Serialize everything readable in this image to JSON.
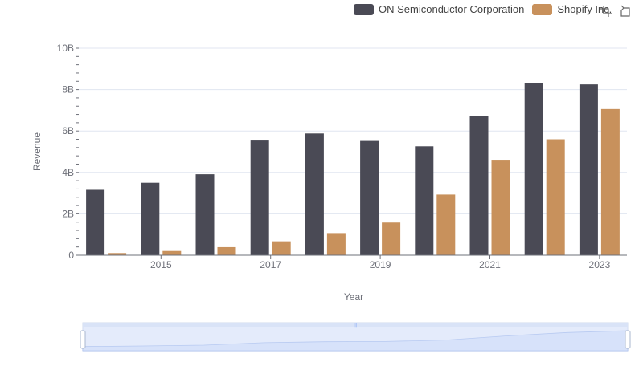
{
  "chart_data": {
    "type": "bar",
    "title": "",
    "xlabel": "Year",
    "ylabel": "Revenue",
    "categories": [
      "2014",
      "2015",
      "2016",
      "2017",
      "2018",
      "2019",
      "2020",
      "2021",
      "2022",
      "2023"
    ],
    "x_tick_labels": [
      "2015",
      "2017",
      "2019",
      "2021",
      "2023"
    ],
    "y_tick_labels": [
      "0",
      "2B",
      "4B",
      "6B",
      "8B",
      "10B"
    ],
    "ylim": [
      0,
      10000000000
    ],
    "grid": true,
    "legend_position": "top-right",
    "series": [
      {
        "name": "ON Semiconductor Corporation",
        "color": "#4a4a55",
        "values": [
          3160000000,
          3500000000,
          3910000000,
          5540000000,
          5880000000,
          5520000000,
          5260000000,
          6740000000,
          8330000000,
          8250000000
        ]
      },
      {
        "name": "Shopify Inc.",
        "color": "#c8915c",
        "values": [
          105000000,
          205000000,
          390000000,
          673000000,
          1070000000,
          1580000000,
          2930000000,
          4610000000,
          5600000000,
          7060000000
        ]
      }
    ]
  },
  "toolbox": {
    "zoom_icon": "data-zoom-icon",
    "reset_icon": "restore-icon"
  },
  "datazoom": {
    "handle_grip": "|||",
    "start_percent": 0,
    "end_percent": 100
  }
}
